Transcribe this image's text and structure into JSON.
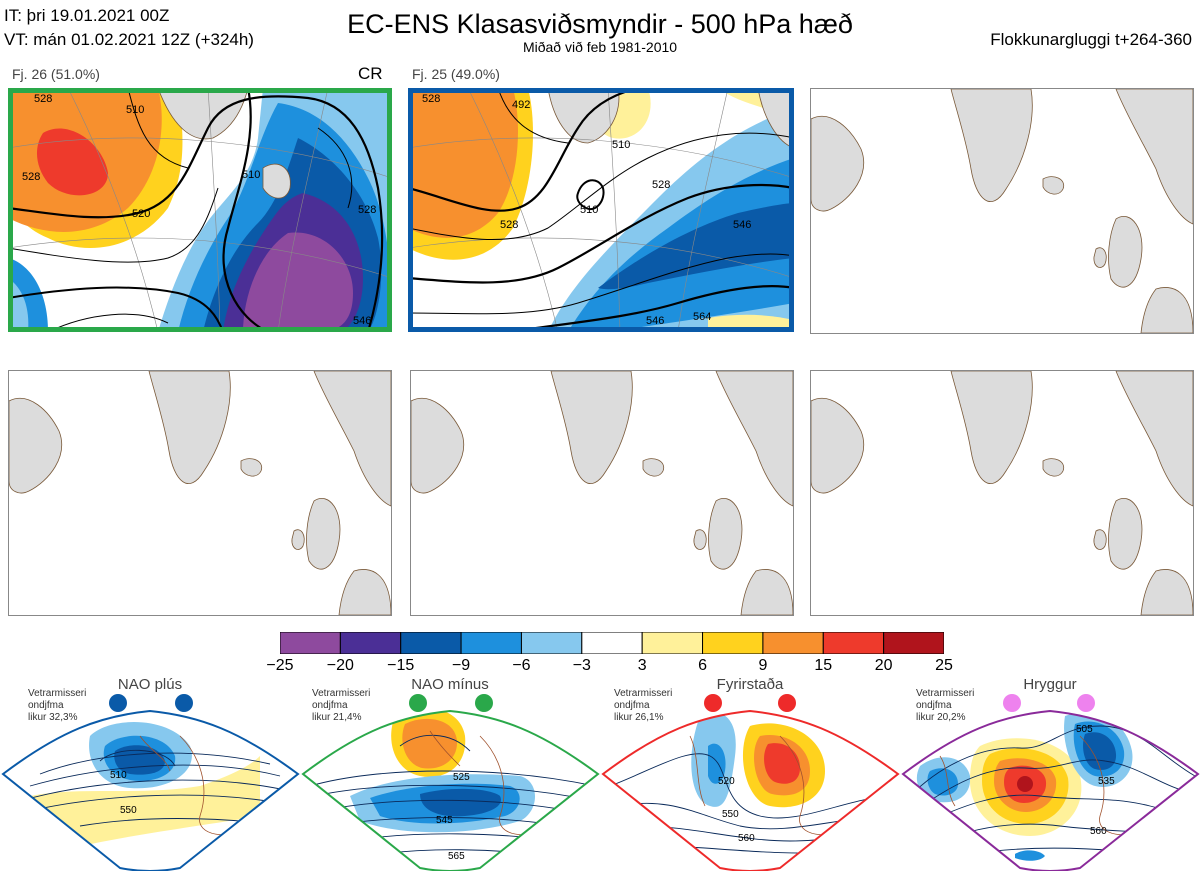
{
  "header": {
    "it_line": "IT: þri 19.01.2021 00Z",
    "vt_line": "VT: mán 01.02.2021 12Z  (+324h)",
    "title": "EC-ENS Klasasviðsmyndir - 500 hPa hæð",
    "subtitle": "Miðað við feb 1981-2010",
    "window": "Flokkunargluggi t+264-360"
  },
  "clusters": [
    {
      "label": "Fj. 26 (51.0%)",
      "tag": "CR",
      "frame_color": "#2aa84a",
      "contours": [
        "528",
        "510",
        "520",
        "510",
        "528",
        "546",
        "528"
      ]
    },
    {
      "label": "Fj. 25 (49.0%)",
      "tag": "",
      "frame_color": "#0a5aa8",
      "contours": [
        "528",
        "492",
        "510",
        "510",
        "528",
        "528",
        "546",
        "546",
        "564"
      ]
    }
  ],
  "colorbar": {
    "ticks": [
      "−25",
      "−20",
      "−15",
      "−9",
      "−6",
      "−3",
      "3",
      "6",
      "9",
      "15",
      "20",
      "25"
    ],
    "colors": [
      "#8e4a9e",
      "#4b2f96",
      "#0a5aa8",
      "#1e90dd",
      "#86c8ee",
      "#ffffff",
      "#fff19a",
      "#ffd21e",
      "#f7902e",
      "#ee3a2c",
      "#b0141c"
    ]
  },
  "regimes": [
    {
      "name": "NAO plús",
      "note": [
        "Vetrarmisseri",
        "ondjfma",
        "likur 32,3%"
      ],
      "color": "#0a5aa8",
      "contours": [
        "510",
        "550"
      ]
    },
    {
      "name": "NAO mínus",
      "note": [
        "Vetrarmisseri",
        "ondjfma",
        "likur 21,4%"
      ],
      "color": "#2aa84a",
      "contours": [
        "525",
        "545",
        "565"
      ]
    },
    {
      "name": "Fyrirstaða",
      "note": [
        "Vetrarmisseri",
        "ondjfma",
        "likur 26,1%"
      ],
      "color": "#ee2a2a",
      "contours": [
        "520",
        "550",
        "560"
      ]
    },
    {
      "name": "Hryggur",
      "note": [
        "Vetrarmisseri",
        "ondjfma",
        "likur 20,2%"
      ],
      "color": "#8a2a9a",
      "contours": [
        "505",
        "535",
        "560"
      ]
    }
  ]
}
